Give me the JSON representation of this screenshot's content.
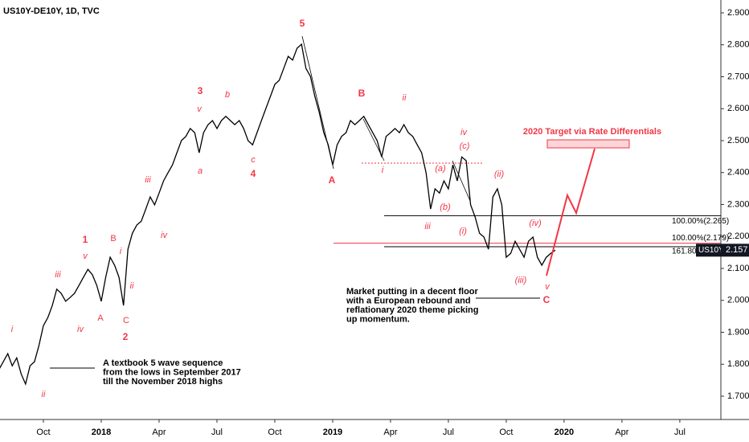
{
  "chart_data": {
    "type": "line",
    "title": "US10Y-DE10Y, 1D, TVC",
    "categories": [
      null,
      null,
      null,
      null,
      null,
      null,
      null,
      null,
      null,
      null,
      "Oct",
      null,
      null,
      null,
      null,
      null,
      null,
      null,
      null,
      null,
      null,
      null,
      null,
      "2018",
      null,
      null,
      null,
      null,
      null,
      null,
      null,
      null,
      null,
      null,
      null,
      null,
      "Apr",
      null,
      null,
      null,
      null,
      null,
      null,
      null,
      null,
      null,
      null,
      null,
      null,
      "Jul",
      null,
      null,
      null,
      null,
      null,
      null,
      null,
      null,
      null,
      null,
      null,
      null,
      "Oct",
      null,
      null,
      null,
      null,
      null,
      null,
      null,
      null,
      null,
      null,
      null,
      null,
      "2019",
      null,
      null,
      null,
      null,
      null,
      null,
      null,
      null,
      null,
      null,
      null,
      null,
      "Apr",
      null,
      null,
      null,
      null,
      null,
      null,
      null,
      null,
      null,
      null,
      null,
      null,
      "Jul",
      null,
      null,
      null,
      null,
      null,
      null,
      null,
      null,
      null,
      null,
      null,
      null,
      "Oct",
      null,
      null,
      null,
      null,
      null,
      null,
      null,
      null,
      null,
      null,
      null,
      null,
      "2020",
      null,
      null,
      null,
      null,
      null,
      null,
      null,
      null,
      null,
      null,
      null,
      null,
      "Apr",
      null,
      null,
      null,
      null,
      null,
      null,
      null,
      null,
      null,
      null,
      null,
      null,
      "Jul",
      null
    ],
    "series": [
      {
        "name": "US10Y",
        "color": "#000000",
        "values": [
          1.783,
          1.808,
          1.833,
          1.795,
          1.82,
          1.77,
          1.738,
          1.795,
          1.808,
          1.858,
          1.921,
          1.946,
          1.984,
          2.035,
          2.022,
          1.997,
          2.009,
          2.022,
          2.047,
          2.072,
          2.097,
          2.08,
          2.047,
          1.997,
          2.072,
          2.135,
          2.11,
          2.072,
          1.984,
          2.16,
          2.21,
          2.236,
          2.248,
          2.286,
          2.324,
          2.299,
          2.336,
          2.374,
          2.399,
          2.424,
          2.462,
          2.5,
          2.513,
          2.538,
          2.525,
          2.462,
          2.525,
          2.55,
          2.563,
          2.538,
          2.563,
          2.576,
          2.563,
          2.55,
          2.563,
          2.538,
          2.5,
          2.487,
          2.525,
          2.563,
          2.601,
          2.638,
          2.676,
          2.689,
          2.726,
          2.764,
          2.752,
          2.789,
          2.802,
          2.726,
          2.701,
          2.638,
          2.588,
          2.525,
          2.487,
          2.424,
          2.487,
          2.513,
          2.525,
          2.563,
          2.55,
          2.563,
          2.576,
          2.55,
          2.525,
          2.5,
          2.449,
          2.513,
          2.525,
          2.538,
          2.525,
          2.55,
          2.525,
          2.513,
          2.487,
          2.462,
          2.399,
          2.286,
          2.349,
          2.336,
          2.374,
          2.349,
          2.424,
          2.374,
          2.449,
          2.437,
          2.299,
          2.261,
          2.21,
          2.198,
          2.16,
          2.324,
          2.349,
          2.299,
          2.135,
          2.147,
          2.185,
          2.16,
          2.135,
          2.185,
          2.198,
          2.135,
          2.11,
          2.135,
          2.147,
          2.157,
          null,
          null,
          null,
          null,
          null,
          null,
          null,
          null,
          null,
          null,
          null,
          null,
          null,
          null,
          null,
          null,
          null,
          null,
          null,
          null,
          null,
          null,
          null,
          null,
          null,
          null,
          null,
          null,
          null
        ]
      }
    ],
    "ylim": [
      1.63,
      2.94
    ],
    "yticks": [
      {
        "value": 1.7,
        "label": "1.700"
      },
      {
        "value": 1.8,
        "label": "1.800"
      },
      {
        "value": 1.9,
        "label": "1.900"
      },
      {
        "value": 2.0,
        "label": "2.000"
      },
      {
        "value": 2.1,
        "label": "2.100"
      },
      {
        "value": 2.2,
        "label": "2.200"
      },
      {
        "value": 2.3,
        "label": "2.300"
      },
      {
        "value": 2.4,
        "label": "2.400"
      },
      {
        "value": 2.5,
        "label": "2.500"
      },
      {
        "value": 2.6,
        "label": "2.600"
      },
      {
        "value": 2.7,
        "label": "2.700"
      },
      {
        "value": 2.8,
        "label": "2.800"
      },
      {
        "value": 2.9,
        "label": "2.900"
      }
    ],
    "grid": false,
    "levels": [
      {
        "label": "100.00%(2.265)",
        "value": 2.265,
        "color": "#000000"
      },
      {
        "label": "100.00%(2.179)",
        "value": 2.179,
        "color": "#f23645"
      },
      {
        "label": "161.80%",
        "value": 2.168,
        "color": "#000000"
      }
    ],
    "wave_labels": [
      "5",
      "3",
      "b",
      "v",
      "B",
      "ii",
      "iv",
      "(c)",
      "(a)",
      "i",
      "a",
      "c",
      "4",
      "A",
      "iii",
      "(ii)",
      "(b)",
      "iii",
      "(i)",
      "(iv)",
      "iv",
      "1",
      "B",
      "v",
      "i",
      "iii",
      "ii",
      "(iii)",
      "v",
      "C",
      "A",
      "C",
      "2",
      "iv",
      "i",
      "ii"
    ],
    "wave_color": "#f23645",
    "target_label": "2020 Target via Rate Differentials",
    "notes": [
      [
        "Market putting in a decent floor",
        "with a European rebound and",
        "reflationary 2020 theme picking",
        "up momentum."
      ],
      [
        "A textbook 5 wave sequence",
        "from the lows in September 2017",
        "till the November 2018 highs"
      ]
    ]
  }
}
